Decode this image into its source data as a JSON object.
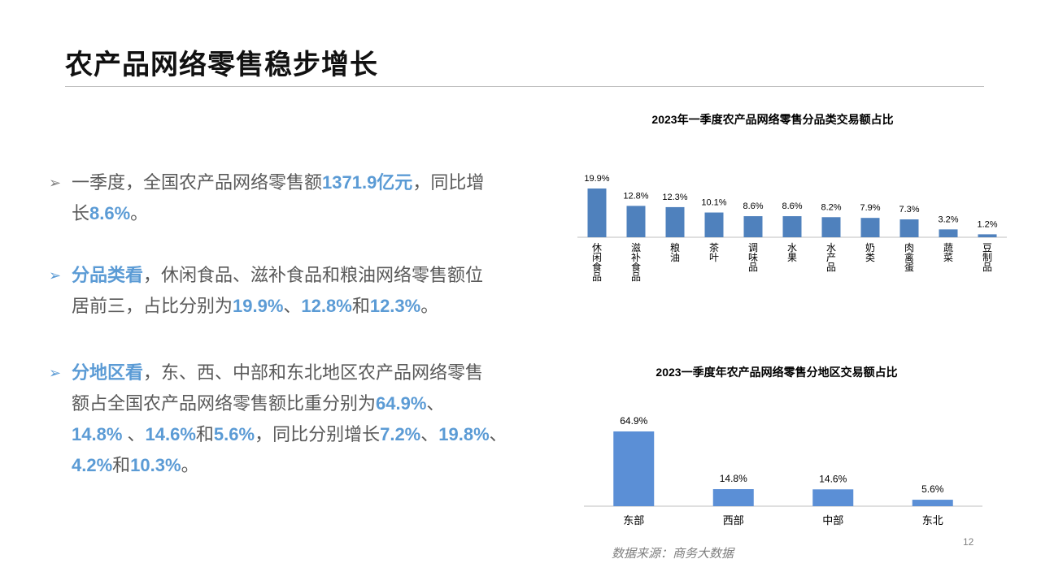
{
  "page": {
    "title": "农产品网络零售稳步增长",
    "source": "数据来源：商务大数据",
    "page_number": "12"
  },
  "bullets": [
    {
      "arrow": "➢",
      "arrow_color": "#7f7f7f",
      "lines": [
        [
          {
            "t": "一季度，全国农产品网络零售额",
            "h": false
          },
          {
            "t": "1371.9亿元",
            "h": true
          },
          {
            "t": "，同比增",
            "h": false
          }
        ],
        [
          {
            "t": "长",
            "h": false
          },
          {
            "t": "8.6%",
            "h": true
          },
          {
            "t": "。",
            "h": false
          }
        ]
      ]
    },
    {
      "arrow": "➢",
      "arrow_color": "#5b9bd5",
      "lines": [
        [
          {
            "t": "分品类看",
            "h": true
          },
          {
            "t": "，休闲食品、滋补食品和粮油网络零售额位",
            "h": false
          }
        ],
        [
          {
            "t": "居前三，占比分别为",
            "h": false
          },
          {
            "t": "19.9%",
            "h": true
          },
          {
            "t": "、",
            "h": false
          },
          {
            "t": "12.8%",
            "h": true
          },
          {
            "t": "和",
            "h": false
          },
          {
            "t": "12.3%",
            "h": true
          },
          {
            "t": "。",
            "h": false
          }
        ]
      ]
    },
    {
      "arrow": "➢",
      "arrow_color": "#5b9bd5",
      "lines": [
        [
          {
            "t": "分地区看",
            "h": true
          },
          {
            "t": "，东、西、中部和东北地区农产品网络零售",
            "h": false
          }
        ],
        [
          {
            "t": "额占全国农产品网络零售额比重分别为",
            "h": false
          },
          {
            "t": "64.9%",
            "h": true
          },
          {
            "t": "、",
            "h": false
          }
        ],
        [
          {
            "t": "14.8% ",
            "h": true
          },
          {
            "t": "、",
            "h": false
          },
          {
            "t": "14.6%",
            "h": true
          },
          {
            "t": "和",
            "h": false
          },
          {
            "t": "5.6%",
            "h": true
          },
          {
            "t": "，同比分别增长",
            "h": false
          },
          {
            "t": "7.2%",
            "h": true
          },
          {
            "t": "、",
            "h": false
          },
          {
            "t": "19.8%",
            "h": true
          },
          {
            "t": "、",
            "h": false
          }
        ],
        [
          {
            "t": "4.2%",
            "h": true
          },
          {
            "t": "和",
            "h": false
          },
          {
            "t": "10.3%",
            "h": true
          },
          {
            "t": "。",
            "h": false
          }
        ]
      ]
    }
  ],
  "chart_data": [
    {
      "type": "bar",
      "title": "2023年一季度农产品网络零售分品类交易额占比",
      "categories": [
        "休闲食品",
        "滋补食品",
        "粮油",
        "茶叶",
        "调味品",
        "水果",
        "水产品",
        "奶类",
        "肉禽蛋",
        "蔬菜",
        "豆制品"
      ],
      "values": [
        19.9,
        12.8,
        12.3,
        10.1,
        8.6,
        8.6,
        8.2,
        7.9,
        7.3,
        3.2,
        1.2
      ],
      "labels": [
        "19.9%",
        "12.8%",
        "12.3%",
        "10.1%",
        "8.6%",
        "8.6%",
        "8.2%",
        "7.9%",
        "7.3%",
        "3.2%",
        "1.2%"
      ],
      "unit": "%",
      "label_orientation": "vertical",
      "bar_color": "#4f81bd",
      "ylim": [
        0,
        19.9
      ]
    },
    {
      "type": "bar",
      "title": "2023一季度年农产品网络零售分地区交易额占比",
      "categories": [
        "东部",
        "西部",
        "中部",
        "东北"
      ],
      "values": [
        64.9,
        14.8,
        14.6,
        5.6
      ],
      "labels": [
        "64.9%",
        "14.8%",
        "14.6%",
        "5.6%"
      ],
      "unit": "%",
      "label_orientation": "horizontal",
      "bar_color": "#5b8fd6",
      "ylim": [
        0,
        64.9
      ]
    }
  ]
}
